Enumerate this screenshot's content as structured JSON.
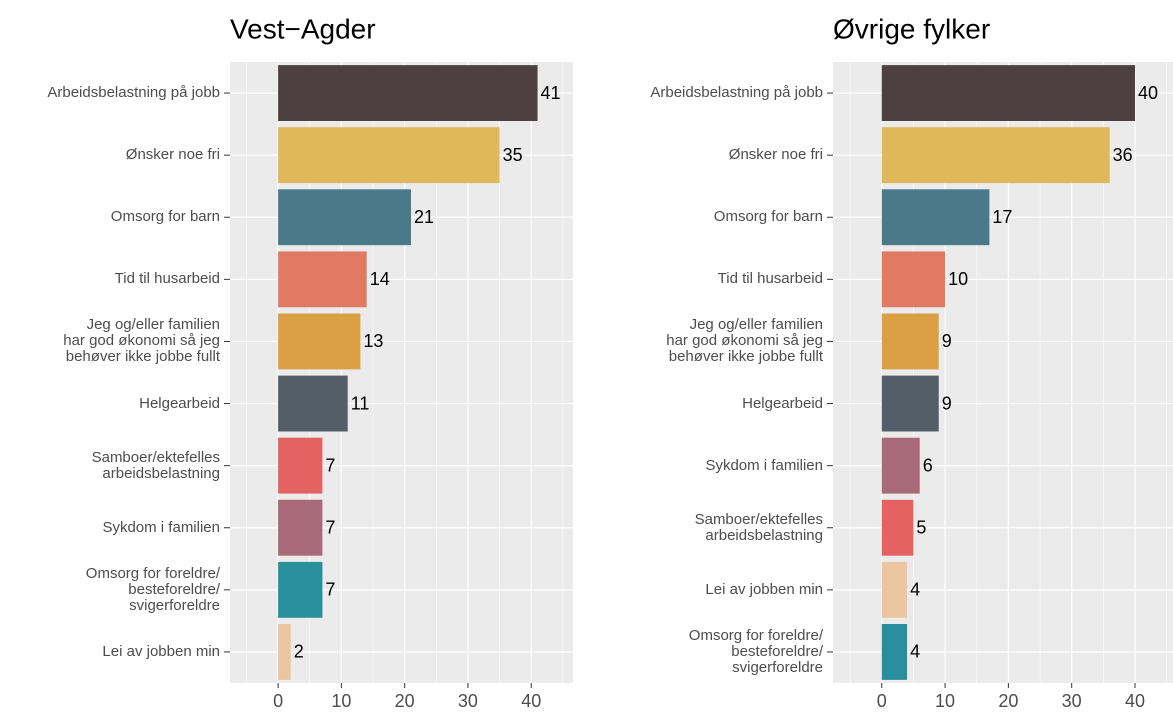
{
  "chart_data": [
    {
      "type": "bar",
      "orientation": "horizontal",
      "title": "Vest−Agder",
      "categories": [
        "Arbeidsbelastning på jobb",
        "Ønsker noe fri",
        "Omsorg for barn",
        "Tid til husarbeid",
        "Jeg og/eller familien\nhar god økonomi så jeg\nbehøver ikke jobbe fullt",
        "Helgearbeid",
        "Samboer/ektefelles\narbeidsbelastning",
        "Sykdom i familien",
        "Omsorg for foreldre/\nbesteforeldre/\nsvigerforeldre",
        "Lei av jobben min"
      ],
      "values": [
        41,
        35,
        21,
        14,
        13,
        11,
        7,
        7,
        7,
        2
      ],
      "colors": [
        "#4d4040",
        "#e0b85c",
        "#4a7a8a",
        "#e07a63",
        "#dba045",
        "#545e68",
        "#e46262",
        "#a86a78",
        "#2a8f9c",
        "#ecc6a0"
      ],
      "xlim": [
        -7.6,
        46.6
      ],
      "xticks": [
        0,
        10,
        20,
        30,
        40
      ],
      "grid": true
    },
    {
      "type": "bar",
      "orientation": "horizontal",
      "title": "Øvrige fylker",
      "categories": [
        "Arbeidsbelastning på jobb",
        "Ønsker noe fri",
        "Omsorg for barn",
        "Tid til husarbeid",
        "Jeg og/eller familien\nhar god økonomi så jeg\nbehøver ikke jobbe fullt",
        "Helgearbeid",
        "Sykdom i familien",
        "Samboer/ektefelles\narbeidsbelastning",
        "Lei av jobben min",
        "Omsorg for foreldre/\nbesteforeldre/\nsvigerforeldre"
      ],
      "values": [
        40,
        36,
        17,
        10,
        9,
        9,
        6,
        5,
        4,
        4
      ],
      "colors": [
        "#4d4040",
        "#e0b85c",
        "#4a7a8a",
        "#e07a63",
        "#dba045",
        "#545e68",
        "#a86a78",
        "#e46262",
        "#ecc6a0",
        "#2a8f9c"
      ],
      "xlim": [
        -7.7,
        46.0
      ],
      "xticks": [
        0,
        10,
        20,
        30,
        40
      ],
      "grid": true
    }
  ]
}
